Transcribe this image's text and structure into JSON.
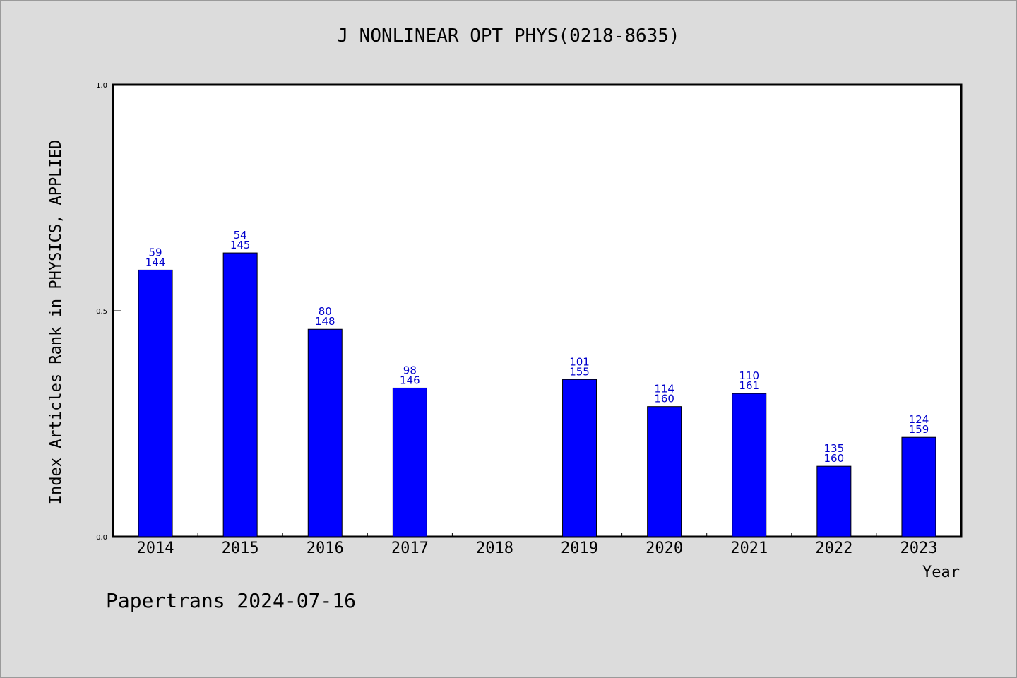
{
  "title": "J NONLINEAR OPT PHYS(0218-8635)",
  "footer": "Papertrans 2024-07-16",
  "chart_data": {
    "type": "bar",
    "title": "J NONLINEAR OPT PHYS(0218-8635)",
    "xlabel": "Year",
    "ylabel": "Index Articles Rank in PHYSICS, APPLIED",
    "ylim": [
      0,
      1.0
    ],
    "yticks": [
      "0.0",
      "0.5",
      "1.0"
    ],
    "categories": [
      "2014",
      "2015",
      "2016",
      "2017",
      "2018",
      "2019",
      "2020",
      "2021",
      "2022",
      "2023"
    ],
    "values": [
      0.59,
      0.628,
      0.459,
      0.329,
      null,
      0.348,
      0.288,
      0.317,
      0.156,
      0.22
    ],
    "rank": [
      "59",
      "54",
      "80",
      "98",
      "",
      "101",
      "114",
      "110",
      "135",
      "124"
    ],
    "total": [
      "144",
      "145",
      "148",
      "146",
      "",
      "155",
      "160",
      "161",
      "160",
      "159"
    ],
    "bar_color": "#0000ff",
    "label_color": "#0000cc",
    "grid": false
  }
}
